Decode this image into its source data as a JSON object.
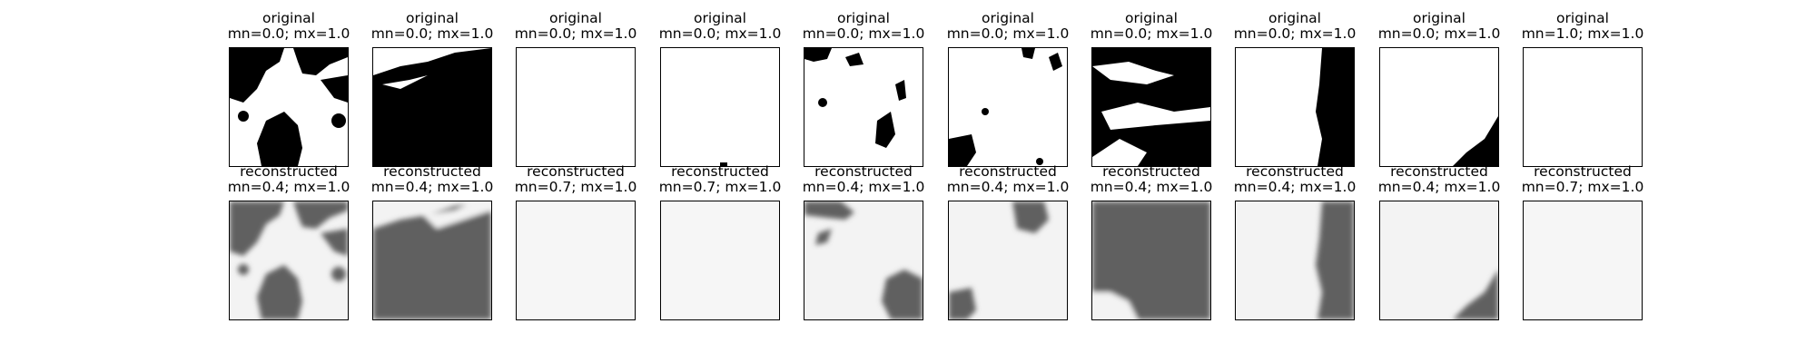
{
  "figure": {
    "rows": [
      {
        "name": "original",
        "panels": [
          {
            "title": "original",
            "stats": "mn=0.0; mx=1.0",
            "dark_color": "#000000",
            "light_color": "#ffffff",
            "pattern": "clouds-top-bottom"
          },
          {
            "title": "original",
            "stats": "mn=0.0; mx=1.0",
            "dark_color": "#000000",
            "light_color": "#ffffff",
            "pattern": "dark-lower"
          },
          {
            "title": "original",
            "stats": "mn=0.0; mx=1.0",
            "dark_color": "#000000",
            "light_color": "#ffffff",
            "pattern": "blank"
          },
          {
            "title": "original",
            "stats": "mn=0.0; mx=1.0",
            "dark_color": "#000000",
            "light_color": "#ffffff",
            "pattern": "blank-speck"
          },
          {
            "title": "original",
            "stats": "mn=0.0; mx=1.0",
            "dark_color": "#000000",
            "light_color": "#ffffff",
            "pattern": "sparse-top-right"
          },
          {
            "title": "original",
            "stats": "mn=0.0; mx=1.0",
            "dark_color": "#000000",
            "light_color": "#ffffff",
            "pattern": "sparse-corners"
          },
          {
            "title": "original",
            "stats": "mn=0.0; mx=1.0",
            "dark_color": "#000000",
            "light_color": "#ffffff",
            "pattern": "mostly-dark"
          },
          {
            "title": "original",
            "stats": "mn=0.0; mx=1.0",
            "dark_color": "#000000",
            "light_color": "#ffffff",
            "pattern": "right-strip"
          },
          {
            "title": "original",
            "stats": "mn=0.0; mx=1.0",
            "dark_color": "#000000",
            "light_color": "#ffffff",
            "pattern": "bottom-right-wedge"
          },
          {
            "title": "original",
            "stats": "mn=1.0; mx=1.0",
            "dark_color": "#000000",
            "light_color": "#ffffff",
            "pattern": "blank"
          }
        ]
      },
      {
        "name": "reconstructed",
        "panels": [
          {
            "title": "reconstructed",
            "stats": "mn=0.4; mx=1.0",
            "dark_color": "#606060",
            "light_color": "#f3f3f3",
            "pattern": "clouds-top-bottom"
          },
          {
            "title": "reconstructed",
            "stats": "mn=0.4; mx=1.0",
            "dark_color": "#606060",
            "light_color": "#f3f3f3",
            "pattern": "dark-lower"
          },
          {
            "title": "reconstructed",
            "stats": "mn=0.7; mx=1.0",
            "dark_color": "#b0b0b0",
            "light_color": "#f6f6f6",
            "pattern": "blank"
          },
          {
            "title": "reconstructed",
            "stats": "mn=0.7; mx=1.0",
            "dark_color": "#b0b0b0",
            "light_color": "#f6f6f6",
            "pattern": "blank"
          },
          {
            "title": "reconstructed",
            "stats": "mn=0.4; mx=1.0",
            "dark_color": "#606060",
            "light_color": "#f3f3f3",
            "pattern": "sparse-top-right-blur"
          },
          {
            "title": "reconstructed",
            "stats": "mn=0.4; mx=1.0",
            "dark_color": "#606060",
            "light_color": "#f3f3f3",
            "pattern": "sparse-corners-blur"
          },
          {
            "title": "reconstructed",
            "stats": "mn=0.4; mx=1.0",
            "dark_color": "#606060",
            "light_color": "#f3f3f3",
            "pattern": "full-dark-bottom-left-light"
          },
          {
            "title": "reconstructed",
            "stats": "mn=0.4; mx=1.0",
            "dark_color": "#606060",
            "light_color": "#f3f3f3",
            "pattern": "right-strip"
          },
          {
            "title": "reconstructed",
            "stats": "mn=0.4; mx=1.0",
            "dark_color": "#606060",
            "light_color": "#f3f3f3",
            "pattern": "bottom-right-wedge"
          },
          {
            "title": "reconstructed",
            "stats": "mn=0.7; mx=1.0",
            "dark_color": "#b0b0b0",
            "light_color": "#f6f6f6",
            "pattern": "blank"
          }
        ]
      }
    ]
  }
}
